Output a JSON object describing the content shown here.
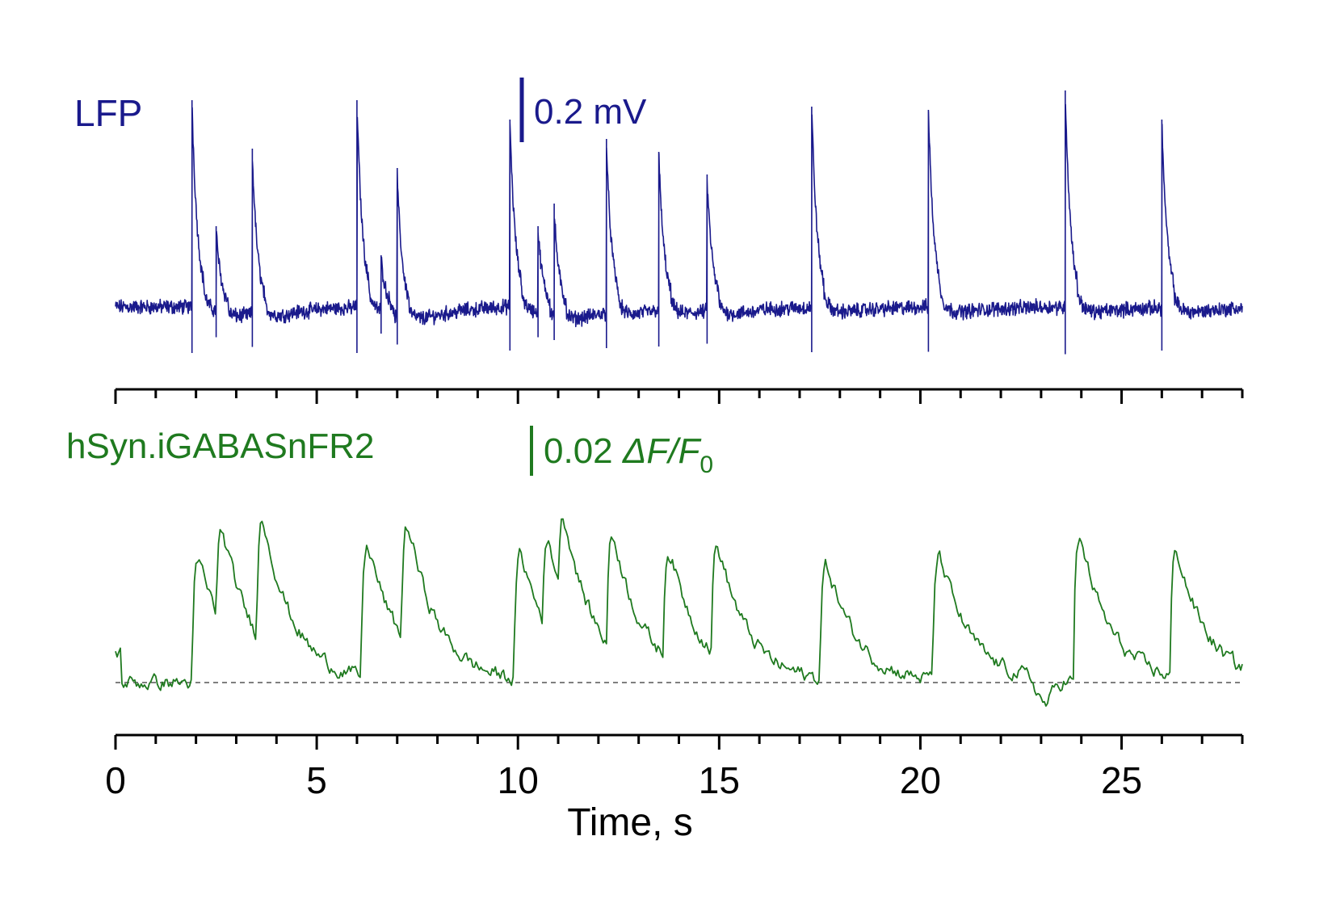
{
  "chart_data": {
    "type": "line",
    "xlabel": "Time, s",
    "xlim": [
      0,
      28
    ],
    "xticks": [
      0,
      5,
      10,
      15,
      20,
      25
    ],
    "x_minor_step": 1,
    "grid": false,
    "colors": {
      "lfp": "#1a1a8c",
      "fluor": "#1f7a1f",
      "axis": "#000000",
      "baseline": "#555555"
    },
    "series": [
      {
        "name": "LFP",
        "scale_bar_label": "0.2 mV",
        "scale_bar_value": 0.2,
        "unit": "mV",
        "baseline": 0,
        "events": [
          {
            "t": 1.9,
            "peak": 0.64
          },
          {
            "t": 2.5,
            "peak": 0.25
          },
          {
            "t": 3.4,
            "peak": 0.49
          },
          {
            "t": 6.0,
            "peak": 0.64
          },
          {
            "t": 6.6,
            "peak": 0.16
          },
          {
            "t": 7.0,
            "peak": 0.43
          },
          {
            "t": 9.8,
            "peak": 0.58
          },
          {
            "t": 10.5,
            "peak": 0.25
          },
          {
            "t": 10.9,
            "peak": 0.32
          },
          {
            "t": 12.2,
            "peak": 0.52
          },
          {
            "t": 13.5,
            "peak": 0.48
          },
          {
            "t": 14.7,
            "peak": 0.41
          },
          {
            "t": 17.3,
            "peak": 0.62
          },
          {
            "t": 20.2,
            "peak": 0.61
          },
          {
            "t": 23.6,
            "peak": 0.67
          },
          {
            "t": 26.0,
            "peak": 0.58
          }
        ]
      },
      {
        "name": "hSyn.iGABASnFR2",
        "scale_bar_label_prefix": "0.02 ",
        "scale_bar_label_delta": "ΔF/F",
        "scale_bar_label_subscript": "0",
        "scale_bar_value": 0.02,
        "unit": "ΔF/F0",
        "baseline": 0,
        "events": [
          {
            "t": 1.9,
            "peak": 0.063
          },
          {
            "t": 2.5,
            "peak": 0.048
          },
          {
            "t": 3.5,
            "peak": 0.064
          },
          {
            "t": 6.1,
            "peak": 0.069
          },
          {
            "t": 7.1,
            "peak": 0.062
          },
          {
            "t": 9.9,
            "peak": 0.065
          },
          {
            "t": 10.6,
            "peak": 0.045
          },
          {
            "t": 11.0,
            "peak": 0.041
          },
          {
            "t": 12.2,
            "peak": 0.059
          },
          {
            "t": 13.6,
            "peak": 0.056
          },
          {
            "t": 14.8,
            "peak": 0.057
          },
          {
            "t": 17.5,
            "peak": 0.06
          },
          {
            "t": 20.3,
            "peak": 0.065
          },
          {
            "t": 23.8,
            "peak": 0.074
          },
          {
            "t": 26.2,
            "peak": 0.065
          }
        ],
        "dip": {
          "t": 23.1,
          "value": -0.01
        }
      }
    ]
  }
}
